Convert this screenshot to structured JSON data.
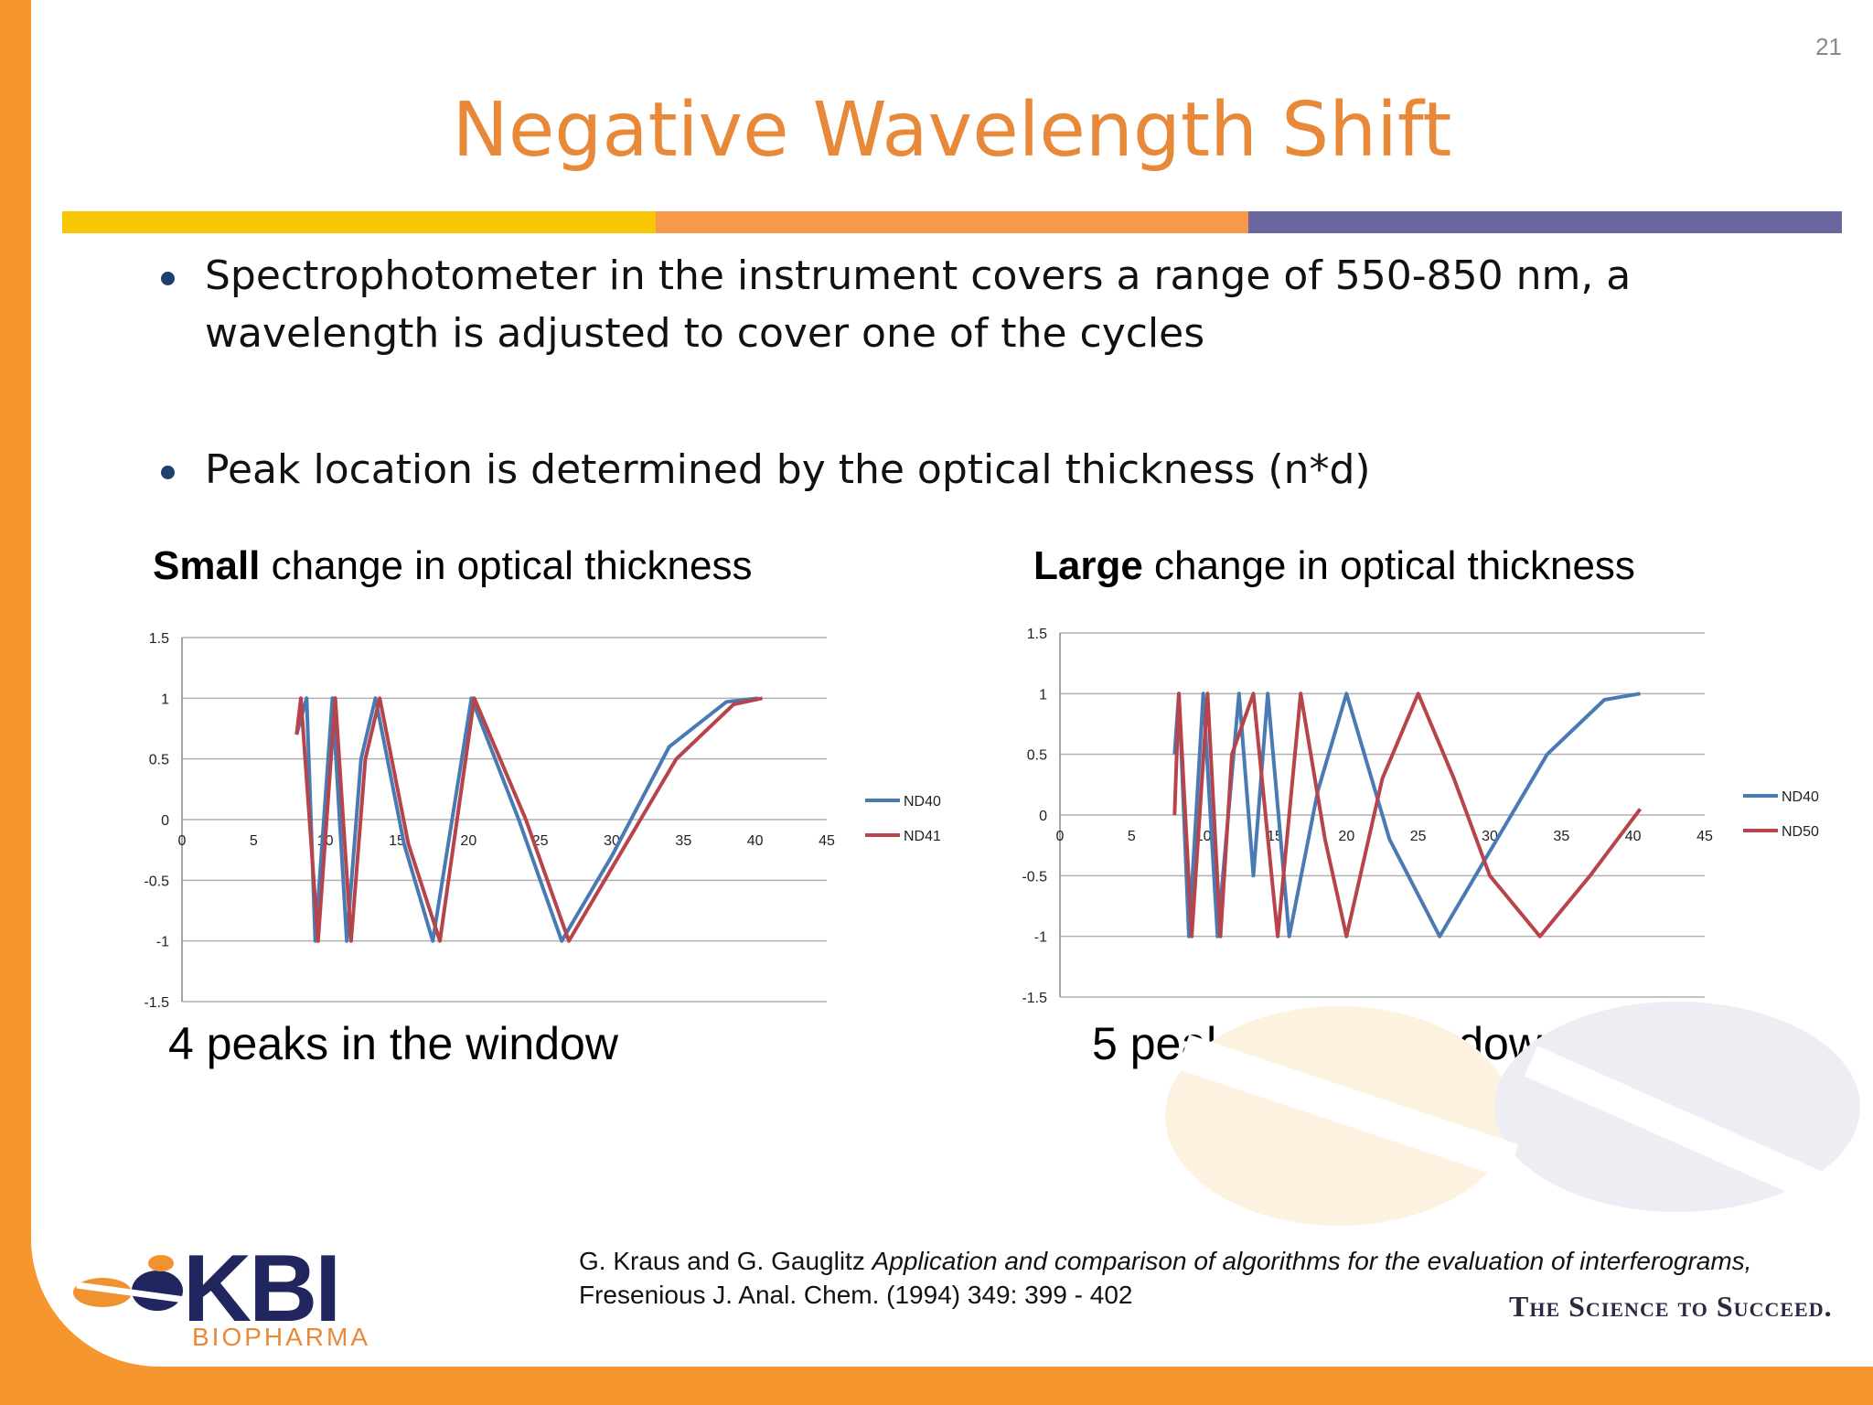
{
  "slide": {
    "page_number": "21",
    "title": "Negative Wavelength Shift",
    "colors": {
      "accent_orange": "#e8893a",
      "bar_yellow": "#f9c606",
      "bar_orange": "#f7984a",
      "bar_purple": "#6a679e",
      "series_blue": "#4a7ab4",
      "series_red": "#b6444a"
    },
    "bullets": [
      "Spectrophotometer in the instrument covers a range of 550-850 nm, a wavelength is adjusted to cover one of the cycles",
      "Peak location is determined by the optical thickness (n*d)"
    ],
    "left_heading_bold": "Small",
    "left_heading_rest": " change in optical thickness",
    "right_heading_bold": "Large",
    "right_heading_rest": " change in optical thickness",
    "left_caption": "4 peaks in the window",
    "right_caption": "5 peaks in the window",
    "citation_authors": "G. Kraus and G. Gauglitz ",
    "citation_title": "Application and comparison of algorithms for the evaluation of interferograms,",
    "citation_journal": "Fresenious J. Anal. Chem. (1994) 349: 399 - 402",
    "tagline": "The Science to Succeed.",
    "logo_text": "KBI",
    "logo_sub": "BIOPHARMA"
  },
  "chart_data": [
    {
      "type": "line",
      "xlim": [
        0,
        45
      ],
      "ylim": [
        -1.5,
        1.5
      ],
      "x_ticks": [
        "0",
        "5",
        "10",
        "15",
        "20",
        "25",
        "30",
        "35",
        "40",
        "45"
      ],
      "y_ticks": [
        "1.5",
        "1",
        "0.5",
        "0",
        "-0.5",
        "-1",
        "-1.5"
      ],
      "grid": true,
      "legend_position": "right",
      "series": [
        {
          "name": "ND40",
          "x": [
            8,
            8.7,
            9.3,
            10.5,
            11.5,
            12.5,
            13.5,
            15.5,
            17.5,
            20.2,
            23.5,
            26.5,
            30,
            34,
            38,
            40.2
          ],
          "y": [
            0.7,
            1,
            -1,
            1,
            -1,
            0.5,
            1,
            -0.2,
            -1,
            1,
            0,
            -1,
            -0.3,
            0.6,
            0.97,
            1
          ]
        },
        {
          "name": "ND41",
          "x": [
            8,
            8.3,
            9.5,
            10.7,
            11.8,
            12.8,
            13.8,
            15.8,
            18,
            20.4,
            24,
            27,
            30.5,
            34.5,
            38.5,
            40.5
          ],
          "y": [
            0.7,
            1,
            -1,
            1,
            -1,
            0.5,
            1,
            -0.2,
            -1,
            1,
            0,
            -1,
            -0.3,
            0.5,
            0.95,
            1
          ]
        }
      ]
    },
    {
      "type": "line",
      "xlim": [
        0,
        45
      ],
      "ylim": [
        -1.5,
        1.5
      ],
      "x_ticks": [
        "0",
        "5",
        "10",
        "15",
        "20",
        "25",
        "30",
        "35",
        "40",
        "45"
      ],
      "y_ticks": [
        "1.5",
        "1",
        "0.5",
        "0",
        "-0.5",
        "-1",
        "-1.5"
      ],
      "grid": true,
      "legend_position": "right",
      "series": [
        {
          "name": "ND40",
          "x": [
            8,
            8.3,
            9,
            10,
            11,
            12.5,
            13.5,
            14.5,
            16,
            18,
            20,
            23,
            26.5,
            30,
            34,
            38,
            40.5
          ],
          "y": [
            0.5,
            1,
            -1,
            1,
            -1,
            1,
            -0.5,
            1,
            -1,
            0.2,
            1,
            -0.2,
            -1,
            -0.3,
            0.5,
            0.95,
            1
          ]
        },
        {
          "name": "ND50",
          "x": [
            8,
            8.3,
            9.2,
            10.3,
            11.2,
            12,
            13.5,
            15.2,
            16.8,
            18.5,
            20,
            22.5,
            25,
            27.5,
            30,
            33.5,
            37,
            40.5
          ],
          "y": [
            0,
            1,
            -1,
            1,
            -1,
            0.5,
            1,
            -1,
            1,
            -0.2,
            -1,
            0.3,
            1,
            0.3,
            -0.5,
            -1,
            -0.5,
            0.05
          ]
        }
      ]
    }
  ]
}
